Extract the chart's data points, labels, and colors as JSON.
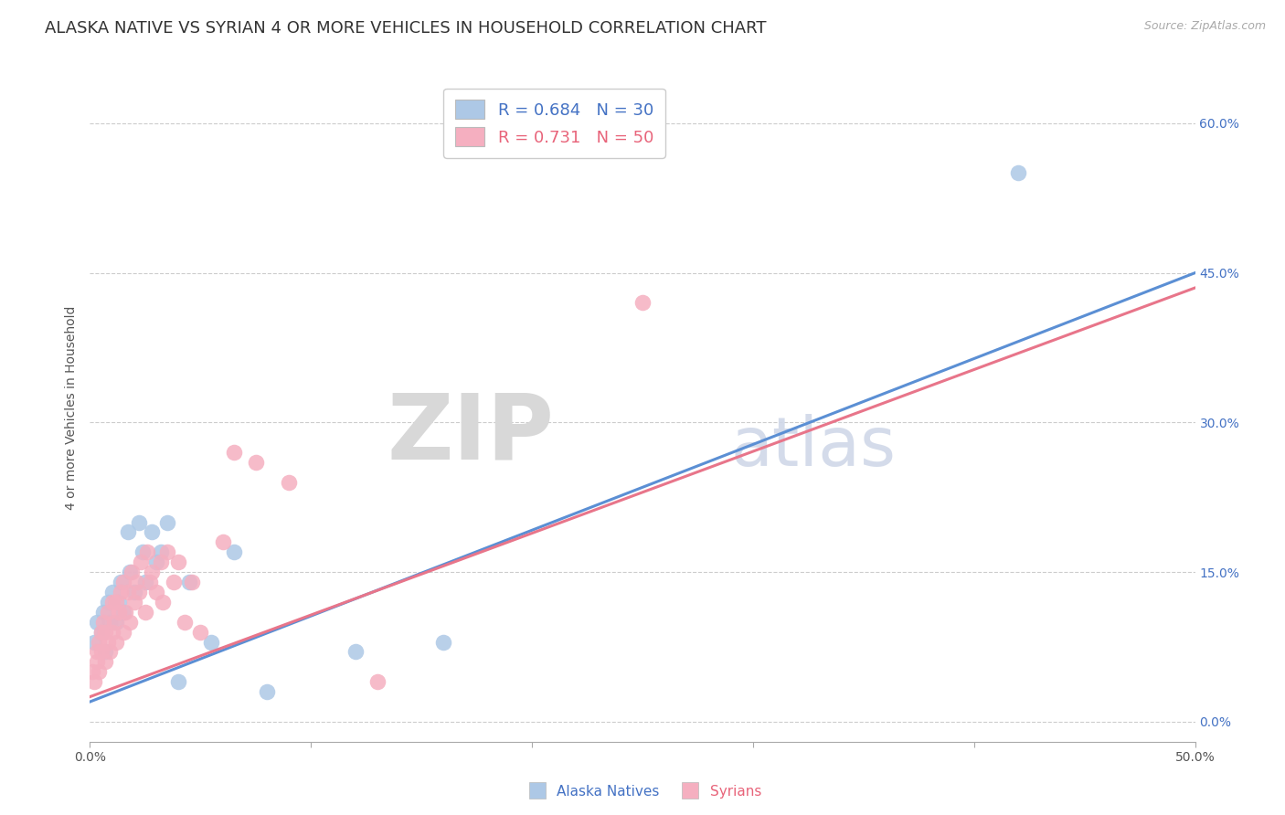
{
  "title": "ALASKA NATIVE VS SYRIAN 4 OR MORE VEHICLES IN HOUSEHOLD CORRELATION CHART",
  "source": "Source: ZipAtlas.com",
  "ylabel": "4 or more Vehicles in Household",
  "xlim": [
    0.0,
    0.5
  ],
  "ylim": [
    -0.02,
    0.65
  ],
  "xtick_positions": [
    0.0,
    0.1,
    0.2,
    0.3,
    0.4,
    0.5
  ],
  "xticklabels": [
    "0.0%",
    "",
    "",
    "",
    "",
    "50.0%"
  ],
  "ytick_positions": [
    0.0,
    0.15,
    0.3,
    0.45,
    0.6
  ],
  "yticklabels_right": [
    "0.0%",
    "15.0%",
    "30.0%",
    "45.0%",
    "60.0%"
  ],
  "legend_R_blue": "0.684",
  "legend_N_blue": "30",
  "legend_R_pink": "0.731",
  "legend_N_pink": "50",
  "blue_color": "#adc8e6",
  "pink_color": "#f5afc0",
  "line_blue": "#5b8fd4",
  "line_pink": "#e8758a",
  "watermark_zip": "ZIP",
  "watermark_atlas": "atlas",
  "alaska_natives_x": [
    0.002,
    0.003,
    0.005,
    0.006,
    0.007,
    0.008,
    0.009,
    0.01,
    0.012,
    0.013,
    0.014,
    0.015,
    0.017,
    0.018,
    0.02,
    0.022,
    0.024,
    0.025,
    0.028,
    0.03,
    0.032,
    0.035,
    0.04,
    0.045,
    0.055,
    0.065,
    0.08,
    0.12,
    0.16,
    0.42
  ],
  "alaska_natives_y": [
    0.08,
    0.1,
    0.09,
    0.11,
    0.07,
    0.12,
    0.1,
    0.13,
    0.1,
    0.12,
    0.14,
    0.11,
    0.19,
    0.15,
    0.13,
    0.2,
    0.17,
    0.14,
    0.19,
    0.16,
    0.17,
    0.2,
    0.04,
    0.14,
    0.08,
    0.17,
    0.03,
    0.07,
    0.08,
    0.55
  ],
  "syrians_x": [
    0.001,
    0.002,
    0.003,
    0.003,
    0.004,
    0.004,
    0.005,
    0.005,
    0.006,
    0.007,
    0.007,
    0.008,
    0.008,
    0.009,
    0.01,
    0.01,
    0.011,
    0.012,
    0.012,
    0.013,
    0.014,
    0.015,
    0.015,
    0.016,
    0.017,
    0.018,
    0.019,
    0.02,
    0.021,
    0.022,
    0.023,
    0.025,
    0.026,
    0.027,
    0.028,
    0.03,
    0.032,
    0.033,
    0.035,
    0.038,
    0.04,
    0.043,
    0.046,
    0.05,
    0.06,
    0.065,
    0.075,
    0.09,
    0.13,
    0.25
  ],
  "syrians_y": [
    0.05,
    0.04,
    0.07,
    0.06,
    0.08,
    0.05,
    0.09,
    0.07,
    0.1,
    0.06,
    0.09,
    0.08,
    0.11,
    0.07,
    0.09,
    0.12,
    0.1,
    0.08,
    0.12,
    0.11,
    0.13,
    0.09,
    0.14,
    0.11,
    0.13,
    0.1,
    0.15,
    0.12,
    0.14,
    0.13,
    0.16,
    0.11,
    0.17,
    0.14,
    0.15,
    0.13,
    0.16,
    0.12,
    0.17,
    0.14,
    0.16,
    0.1,
    0.14,
    0.09,
    0.18,
    0.27,
    0.26,
    0.24,
    0.04,
    0.42
  ],
  "background_color": "#ffffff",
  "grid_color": "#cccccc",
  "title_fontsize": 13,
  "axis_label_fontsize": 10,
  "tick_fontsize": 10,
  "legend_fontsize": 13
}
